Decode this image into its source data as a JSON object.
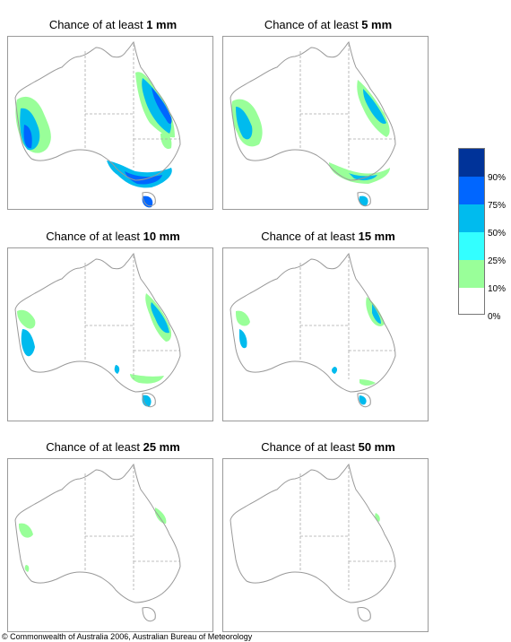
{
  "panels": [
    {
      "prefix": "Chance of at least ",
      "amount": "1 mm"
    },
    {
      "prefix": "Chance of at least ",
      "amount": "5 mm"
    },
    {
      "prefix": "Chance of at least ",
      "amount": "10 mm"
    },
    {
      "prefix": "Chance of at least ",
      "amount": "15 mm"
    },
    {
      "prefix": "Chance of at least ",
      "amount": "25 mm"
    },
    {
      "prefix": "Chance of at least ",
      "amount": "50 mm"
    }
  ],
  "legend": {
    "labels": [
      "90%",
      "75%",
      "50%",
      "25%",
      "10%",
      "0%"
    ],
    "colors": [
      "#003399",
      "#0066ff",
      "#00bbee",
      "#33ffff",
      "#99ff99",
      "#ffffff"
    ]
  },
  "footer": {
    "copyright": "© Commonwealth of Australia 2006, Australian Bureau of Meteorology"
  }
}
